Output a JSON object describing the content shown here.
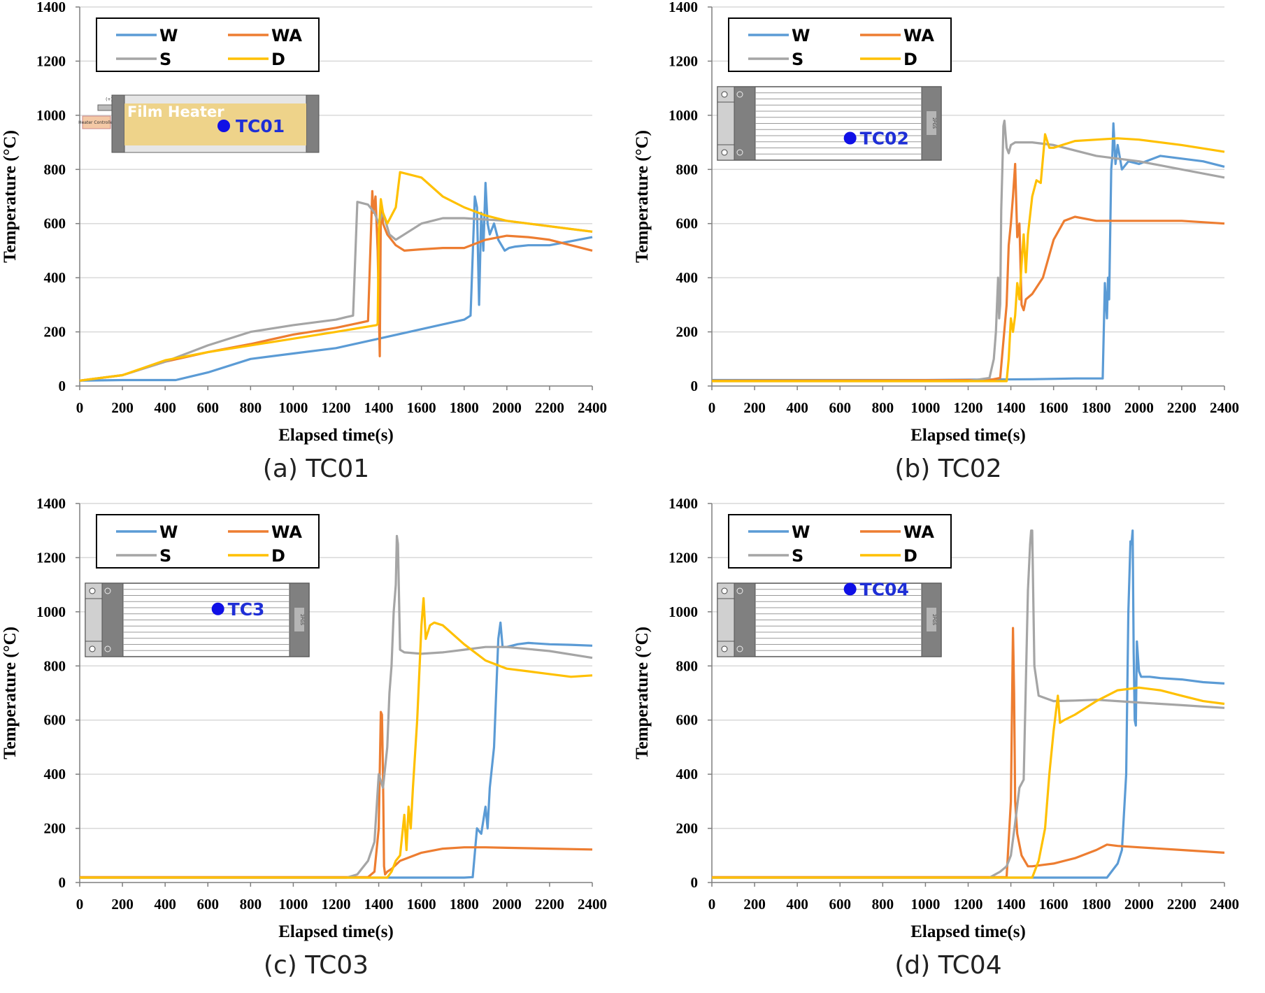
{
  "chart_data": [
    {
      "type": "line",
      "caption": "(a) TC01",
      "xlabel": "Elapsed time(s)",
      "ylabel": "Temperature (°C)",
      "xlim": [
        0,
        2400
      ],
      "ylim": [
        0,
        1400
      ],
      "xticks": [
        "0",
        "200",
        "400",
        "600",
        "800",
        "1000",
        "1200",
        "1400",
        "1600",
        "1800",
        "2000",
        "2200",
        "2400"
      ],
      "yticks": [
        "0",
        "200",
        "400",
        "600",
        "800",
        "1000",
        "1200",
        "1400"
      ],
      "legend": [
        "W",
        "WA",
        "S",
        "D"
      ],
      "inset": {
        "kind": "film-heater",
        "heater_label": "Film Heater",
        "tc_label": "TC01",
        "plus_label": "(+)",
        "controller_label": "Heater Controller",
        "tc_pos": [
          0.5,
          0.5
        ]
      },
      "series": [
        {
          "name": "W",
          "color": "#5b9bd5",
          "x": [
            0,
            200,
            450,
            600,
            800,
            1000,
            1200,
            1400,
            1600,
            1800,
            1830,
            1850,
            1860,
            1870,
            1880,
            1890,
            1900,
            1910,
            1920,
            1940,
            1960,
            1990,
            2010,
            2040,
            2100,
            2200,
            2300,
            2400
          ],
          "y": [
            20,
            22,
            22,
            50,
            100,
            120,
            140,
            175,
            210,
            245,
            260,
            700,
            660,
            300,
            640,
            500,
            750,
            600,
            560,
            600,
            540,
            500,
            510,
            515,
            520,
            520,
            535,
            550
          ]
        },
        {
          "name": "WA",
          "color": "#ed7d31",
          "x": [
            0,
            200,
            400,
            600,
            800,
            1000,
            1200,
            1320,
            1350,
            1370,
            1375,
            1385,
            1395,
            1405,
            1410,
            1415,
            1420,
            1440,
            1480,
            1520,
            1600,
            1700,
            1800,
            1900,
            2000,
            2100,
            2200,
            2300,
            2400
          ],
          "y": [
            20,
            40,
            90,
            125,
            155,
            190,
            215,
            235,
            240,
            720,
            640,
            700,
            500,
            110,
            640,
            650,
            600,
            560,
            520,
            500,
            505,
            510,
            510,
            540,
            555,
            550,
            540,
            520,
            500
          ]
        },
        {
          "name": "S",
          "color": "#a5a5a5",
          "x": [
            0,
            200,
            400,
            600,
            800,
            1000,
            1200,
            1250,
            1280,
            1300,
            1350,
            1380,
            1400,
            1420,
            1450,
            1480,
            1520,
            1600,
            1700,
            1800,
            1900,
            2000,
            2200,
            2400
          ],
          "y": [
            20,
            40,
            90,
            150,
            200,
            225,
            245,
            255,
            260,
            680,
            670,
            640,
            600,
            640,
            560,
            540,
            560,
            600,
            620,
            620,
            615,
            610,
            590,
            570
          ]
        },
        {
          "name": "D",
          "color": "#ffc000",
          "x": [
            0,
            200,
            400,
            600,
            800,
            1000,
            1200,
            1390,
            1395,
            1400,
            1410,
            1420,
            1440,
            1480,
            1500,
            1600,
            1700,
            1800,
            1900,
            2000,
            2100,
            2200,
            2300,
            2400
          ],
          "y": [
            20,
            40,
            95,
            125,
            150,
            175,
            200,
            225,
            230,
            560,
            690,
            640,
            600,
            660,
            790,
            770,
            700,
            660,
            630,
            610,
            600,
            590,
            580,
            570
          ]
        }
      ]
    },
    {
      "type": "line",
      "caption": "(b) TC02",
      "xlabel": "Elapsed time(s)",
      "ylabel": "Temperature (°C)",
      "xlim": [
        0,
        2400
      ],
      "ylim": [
        0,
        1400
      ],
      "xticks": [
        "0",
        "200",
        "400",
        "600",
        "800",
        "1000",
        "1200",
        "1400",
        "1600",
        "1800",
        "2000",
        "2200",
        "2400"
      ],
      "yticks": [
        "0",
        "200",
        "400",
        "600",
        "800",
        "1000",
        "1200",
        "1400"
      ],
      "legend": [
        "W",
        "WA",
        "S",
        "D"
      ],
      "inset": {
        "kind": "panel",
        "tc_label": "TC02",
        "side_label": "2PGS",
        "tc_pos": [
          0.57,
          0.7
        ]
      },
      "series": [
        {
          "name": "W",
          "color": "#5b9bd5",
          "x": [
            0,
            1000,
            1300,
            1500,
            1700,
            1830,
            1840,
            1850,
            1855,
            1860,
            1870,
            1875,
            1880,
            1890,
            1900,
            1920,
            1950,
            2000,
            2100,
            2200,
            2300,
            2400
          ],
          "y": [
            22,
            22,
            24,
            25,
            28,
            28,
            380,
            250,
            400,
            320,
            800,
            850,
            970,
            820,
            890,
            800,
            830,
            820,
            850,
            840,
            830,
            810
          ]
        },
        {
          "name": "WA",
          "color": "#ed7d31",
          "x": [
            0,
            1300,
            1350,
            1380,
            1390,
            1400,
            1410,
            1420,
            1430,
            1440,
            1450,
            1460,
            1470,
            1500,
            1550,
            1600,
            1650,
            1700,
            1800,
            2000,
            2200,
            2400
          ],
          "y": [
            20,
            22,
            30,
            300,
            520,
            600,
            700,
            820,
            550,
            600,
            300,
            280,
            320,
            340,
            400,
            540,
            610,
            625,
            610,
            610,
            610,
            600
          ]
        },
        {
          "name": "S",
          "color": "#a5a5a5",
          "x": [
            0,
            1200,
            1300,
            1320,
            1330,
            1340,
            1345,
            1350,
            1355,
            1360,
            1365,
            1370,
            1380,
            1390,
            1400,
            1420,
            1450,
            1500,
            1600,
            1800,
            2000,
            2200,
            2400
          ],
          "y": [
            18,
            18,
            30,
            100,
            200,
            400,
            250,
            300,
            650,
            800,
            960,
            980,
            880,
            860,
            890,
            900,
            900,
            900,
            890,
            850,
            830,
            800,
            770
          ]
        },
        {
          "name": "D",
          "color": "#ffc000",
          "x": [
            0,
            1380,
            1390,
            1400,
            1410,
            1420,
            1430,
            1440,
            1450,
            1460,
            1470,
            1480,
            1500,
            1520,
            1540,
            1560,
            1580,
            1600,
            1700,
            1800,
            1900,
            2000,
            2200,
            2400
          ],
          "y": [
            18,
            18,
            100,
            250,
            200,
            260,
            380,
            320,
            450,
            560,
            420,
            560,
            700,
            760,
            750,
            930,
            880,
            880,
            905,
            910,
            915,
            910,
            890,
            865
          ]
        }
      ]
    },
    {
      "type": "line",
      "caption": "(c) TC03",
      "xlabel": "Elapsed time(s)",
      "ylabel": "Temperature (°C)",
      "xlim": [
        0,
        2400
      ],
      "ylim": [
        0,
        1400
      ],
      "xticks": [
        "0",
        "200",
        "400",
        "600",
        "800",
        "1000",
        "1200",
        "1400",
        "1600",
        "1800",
        "2000",
        "2200",
        "2400"
      ],
      "yticks": [
        "0",
        "200",
        "400",
        "600",
        "800",
        "1000",
        "1200",
        "1400"
      ],
      "legend": [
        "W",
        "WA",
        "S",
        "D"
      ],
      "inset": {
        "kind": "panel",
        "tc_label": "TC3",
        "side_label": "2PGS",
        "tc_pos": [
          0.57,
          0.35
        ]
      },
      "series": [
        {
          "name": "W",
          "color": "#5b9bd5",
          "x": [
            0,
            1800,
            1840,
            1860,
            1880,
            1900,
            1910,
            1920,
            1940,
            1960,
            1970,
            1980,
            2000,
            2050,
            2100,
            2200,
            2300,
            2400
          ],
          "y": [
            18,
            18,
            20,
            200,
            180,
            280,
            200,
            350,
            500,
            900,
            960,
            870,
            870,
            880,
            885,
            880,
            878,
            875
          ]
        },
        {
          "name": "WA",
          "color": "#ed7d31",
          "x": [
            0,
            1350,
            1380,
            1400,
            1410,
            1415,
            1420,
            1425,
            1430,
            1440,
            1460,
            1500,
            1600,
            1700,
            1800,
            1900,
            2000,
            2200,
            2400
          ],
          "y": [
            20,
            20,
            40,
            200,
            630,
            620,
            400,
            60,
            30,
            40,
            50,
            80,
            110,
            125,
            130,
            130,
            128,
            125,
            122
          ]
        },
        {
          "name": "S",
          "color": "#a5a5a5",
          "x": [
            0,
            1250,
            1300,
            1350,
            1380,
            1400,
            1420,
            1440,
            1450,
            1460,
            1470,
            1480,
            1485,
            1490,
            1500,
            1520,
            1600,
            1700,
            1800,
            1900,
            2000,
            2200,
            2400
          ],
          "y": [
            18,
            18,
            30,
            80,
            150,
            400,
            350,
            500,
            700,
            800,
            1000,
            1100,
            1280,
            1250,
            860,
            850,
            845,
            850,
            860,
            870,
            870,
            855,
            830
          ]
        },
        {
          "name": "D",
          "color": "#ffc000",
          "x": [
            0,
            1440,
            1460,
            1480,
            1500,
            1520,
            1530,
            1540,
            1550,
            1560,
            1580,
            1600,
            1610,
            1620,
            1640,
            1660,
            1700,
            1800,
            1900,
            2000,
            2100,
            2200,
            2300,
            2400
          ],
          "y": [
            18,
            18,
            40,
            80,
            100,
            250,
            120,
            280,
            200,
            350,
            600,
            950,
            1050,
            900,
            950,
            960,
            950,
            880,
            820,
            790,
            780,
            770,
            760,
            765
          ]
        }
      ]
    },
    {
      "type": "line",
      "caption": "(d) TC04",
      "xlabel": "Elapsed time(s)",
      "ylabel": "Temperature (°C)",
      "xlim": [
        0,
        2400
      ],
      "ylim": [
        0,
        1400
      ],
      "xticks": [
        "0",
        "200",
        "400",
        "600",
        "800",
        "1000",
        "1200",
        "1400",
        "1600",
        "1800",
        "2000",
        "2200",
        "2400"
      ],
      "yticks": [
        "0",
        "200",
        "400",
        "600",
        "800",
        "1000",
        "1200",
        "1400"
      ],
      "legend": [
        "W",
        "WA",
        "S",
        "D"
      ],
      "inset": {
        "kind": "panel",
        "tc_label": "TC04",
        "side_label": "2PGS",
        "tc_pos": [
          0.57,
          0.08
        ]
      },
      "series": [
        {
          "name": "W",
          "color": "#5b9bd5",
          "x": [
            0,
            1850,
            1900,
            1920,
            1940,
            1950,
            1960,
            1965,
            1970,
            1975,
            1980,
            1985,
            1990,
            2000,
            2010,
            2050,
            2100,
            2200,
            2300,
            2400
          ],
          "y": [
            18,
            18,
            70,
            120,
            400,
            1000,
            1260,
            1250,
            1300,
            850,
            600,
            580,
            890,
            780,
            760,
            760,
            755,
            750,
            740,
            735
          ]
        },
        {
          "name": "WA",
          "color": "#ed7d31",
          "x": [
            0,
            1380,
            1400,
            1410,
            1415,
            1420,
            1430,
            1450,
            1480,
            1500,
            1550,
            1600,
            1700,
            1800,
            1850,
            1900,
            2000,
            2200,
            2400
          ],
          "y": [
            20,
            20,
            300,
            940,
            700,
            300,
            180,
            100,
            60,
            60,
            65,
            70,
            90,
            120,
            140,
            135,
            130,
            120,
            110
          ]
        },
        {
          "name": "S",
          "color": "#a5a5a5",
          "x": [
            0,
            1300,
            1350,
            1380,
            1400,
            1420,
            1440,
            1460,
            1480,
            1490,
            1495,
            1500,
            1510,
            1530,
            1600,
            1700,
            1800,
            1900,
            2000,
            2200,
            2400
          ],
          "y": [
            18,
            18,
            40,
            60,
            100,
            220,
            350,
            380,
            1080,
            1250,
            1300,
            1300,
            800,
            690,
            670,
            672,
            675,
            670,
            665,
            655,
            645
          ]
        },
        {
          "name": "D",
          "color": "#ffc000",
          "x": [
            0,
            1500,
            1530,
            1560,
            1580,
            1600,
            1620,
            1630,
            1650,
            1700,
            1800,
            1900,
            2000,
            2100,
            2200,
            2300,
            2400
          ],
          "y": [
            18,
            18,
            80,
            200,
            400,
            560,
            690,
            590,
            600,
            620,
            670,
            710,
            720,
            710,
            690,
            670,
            660
          ]
        }
      ]
    }
  ]
}
